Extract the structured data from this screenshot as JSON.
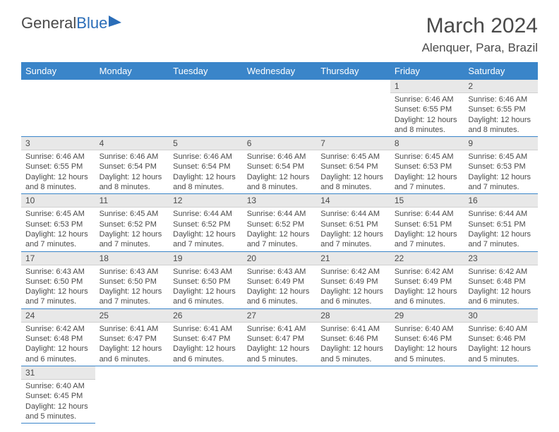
{
  "logo": {
    "text1": "General",
    "text2": "Blue"
  },
  "title": "March 2024",
  "location": "Alenquer, Para, Brazil",
  "colors": {
    "header_bg": "#3a85c9",
    "header_text": "#ffffff",
    "daynum_bg": "#e8e8e8",
    "border": "#3a85c9",
    "text": "#4a4a4a",
    "logo_blue": "#2a6db8"
  },
  "day_headers": [
    "Sunday",
    "Monday",
    "Tuesday",
    "Wednesday",
    "Thursday",
    "Friday",
    "Saturday"
  ],
  "weeks": [
    [
      null,
      null,
      null,
      null,
      null,
      {
        "d": "1",
        "sr": "6:46 AM",
        "ss": "6:55 PM",
        "dl": "12 hours and 8 minutes."
      },
      {
        "d": "2",
        "sr": "6:46 AM",
        "ss": "6:55 PM",
        "dl": "12 hours and 8 minutes."
      }
    ],
    [
      {
        "d": "3",
        "sr": "6:46 AM",
        "ss": "6:55 PM",
        "dl": "12 hours and 8 minutes."
      },
      {
        "d": "4",
        "sr": "6:46 AM",
        "ss": "6:54 PM",
        "dl": "12 hours and 8 minutes."
      },
      {
        "d": "5",
        "sr": "6:46 AM",
        "ss": "6:54 PM",
        "dl": "12 hours and 8 minutes."
      },
      {
        "d": "6",
        "sr": "6:46 AM",
        "ss": "6:54 PM",
        "dl": "12 hours and 8 minutes."
      },
      {
        "d": "7",
        "sr": "6:45 AM",
        "ss": "6:54 PM",
        "dl": "12 hours and 8 minutes."
      },
      {
        "d": "8",
        "sr": "6:45 AM",
        "ss": "6:53 PM",
        "dl": "12 hours and 7 minutes."
      },
      {
        "d": "9",
        "sr": "6:45 AM",
        "ss": "6:53 PM",
        "dl": "12 hours and 7 minutes."
      }
    ],
    [
      {
        "d": "10",
        "sr": "6:45 AM",
        "ss": "6:53 PM",
        "dl": "12 hours and 7 minutes."
      },
      {
        "d": "11",
        "sr": "6:45 AM",
        "ss": "6:52 PM",
        "dl": "12 hours and 7 minutes."
      },
      {
        "d": "12",
        "sr": "6:44 AM",
        "ss": "6:52 PM",
        "dl": "12 hours and 7 minutes."
      },
      {
        "d": "13",
        "sr": "6:44 AM",
        "ss": "6:52 PM",
        "dl": "12 hours and 7 minutes."
      },
      {
        "d": "14",
        "sr": "6:44 AM",
        "ss": "6:51 PM",
        "dl": "12 hours and 7 minutes."
      },
      {
        "d": "15",
        "sr": "6:44 AM",
        "ss": "6:51 PM",
        "dl": "12 hours and 7 minutes."
      },
      {
        "d": "16",
        "sr": "6:44 AM",
        "ss": "6:51 PM",
        "dl": "12 hours and 7 minutes."
      }
    ],
    [
      {
        "d": "17",
        "sr": "6:43 AM",
        "ss": "6:50 PM",
        "dl": "12 hours and 7 minutes."
      },
      {
        "d": "18",
        "sr": "6:43 AM",
        "ss": "6:50 PM",
        "dl": "12 hours and 7 minutes."
      },
      {
        "d": "19",
        "sr": "6:43 AM",
        "ss": "6:50 PM",
        "dl": "12 hours and 6 minutes."
      },
      {
        "d": "20",
        "sr": "6:43 AM",
        "ss": "6:49 PM",
        "dl": "12 hours and 6 minutes."
      },
      {
        "d": "21",
        "sr": "6:42 AM",
        "ss": "6:49 PM",
        "dl": "12 hours and 6 minutes."
      },
      {
        "d": "22",
        "sr": "6:42 AM",
        "ss": "6:49 PM",
        "dl": "12 hours and 6 minutes."
      },
      {
        "d": "23",
        "sr": "6:42 AM",
        "ss": "6:48 PM",
        "dl": "12 hours and 6 minutes."
      }
    ],
    [
      {
        "d": "24",
        "sr": "6:42 AM",
        "ss": "6:48 PM",
        "dl": "12 hours and 6 minutes."
      },
      {
        "d": "25",
        "sr": "6:41 AM",
        "ss": "6:47 PM",
        "dl": "12 hours and 6 minutes."
      },
      {
        "d": "26",
        "sr": "6:41 AM",
        "ss": "6:47 PM",
        "dl": "12 hours and 6 minutes."
      },
      {
        "d": "27",
        "sr": "6:41 AM",
        "ss": "6:47 PM",
        "dl": "12 hours and 5 minutes."
      },
      {
        "d": "28",
        "sr": "6:41 AM",
        "ss": "6:46 PM",
        "dl": "12 hours and 5 minutes."
      },
      {
        "d": "29",
        "sr": "6:40 AM",
        "ss": "6:46 PM",
        "dl": "12 hours and 5 minutes."
      },
      {
        "d": "30",
        "sr": "6:40 AM",
        "ss": "6:46 PM",
        "dl": "12 hours and 5 minutes."
      }
    ],
    [
      {
        "d": "31",
        "sr": "6:40 AM",
        "ss": "6:45 PM",
        "dl": "12 hours and 5 minutes."
      },
      null,
      null,
      null,
      null,
      null,
      null
    ]
  ],
  "labels": {
    "sunrise": "Sunrise:",
    "sunset": "Sunset:",
    "daylight": "Daylight:"
  }
}
